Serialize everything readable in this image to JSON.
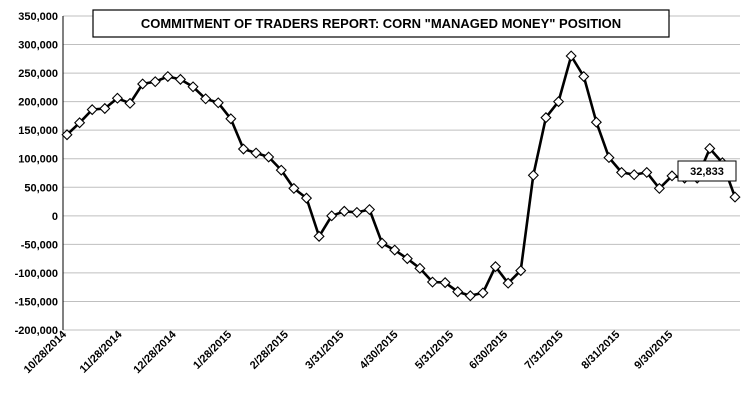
{
  "chart_data": {
    "type": "line",
    "title": "COMMITMENT OF TRADERS REPORT:  CORN \"MANAGED MONEY\" POSITION",
    "xlabel": "",
    "ylabel": "",
    "ylim": [
      -200000,
      350000
    ],
    "yticks": [
      350000,
      300000,
      250000,
      200000,
      150000,
      100000,
      50000,
      0,
      -50000,
      -100000,
      -150000,
      -200000
    ],
    "ytick_labels": [
      "350,000",
      "300,000",
      "250,000",
      "200,000",
      "150,000",
      "100,000",
      "50,000",
      "0",
      "-50,000",
      "-100,000",
      "-150,000",
      "-200,000"
    ],
    "xtick_labels": [
      "10/28/2014",
      "11/28/2014",
      "12/28/2014",
      "1/28/2015",
      "2/28/2015",
      "3/31/2015",
      "4/30/2015",
      "5/31/2015",
      "6/30/2015",
      "7/31/2015",
      "8/31/2015",
      "9/30/2015"
    ],
    "xtick_week_index": [
      0,
      4.4,
      8.7,
      13.1,
      17.6,
      22.0,
      26.3,
      30.7,
      35.0,
      39.4,
      43.9,
      48.1
    ],
    "grid": true,
    "marker": "diamond",
    "series": [
      {
        "values": [
          142000,
          163000,
          186000,
          188000,
          206000,
          197000,
          231000,
          235000,
          244000,
          239000,
          226000,
          205000,
          198000,
          170000,
          117000,
          110000,
          103000,
          80000,
          48000,
          31000,
          -36000,
          0,
          8000,
          6000,
          11000,
          -48000,
          -60000,
          -75000,
          -92000,
          -116000,
          -117000,
          -133000,
          -140000,
          -135000,
          -89000,
          -118000,
          -96000,
          71000,
          172000,
          200000,
          280000,
          244000,
          164000,
          102000,
          76000,
          72000,
          76000,
          48000,
          70000,
          66000,
          66000,
          118000,
          93000,
          32833
        ]
      }
    ],
    "annotation": {
      "label": "32,833"
    }
  }
}
